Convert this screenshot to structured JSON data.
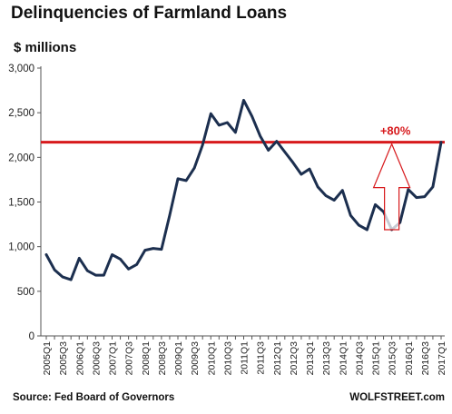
{
  "chart_data": {
    "type": "line",
    "title": "Delinquencies of Farmland Loans",
    "ylabel": "$ millions",
    "ylim": [
      0,
      3000
    ],
    "yticks": [
      "3,000",
      "2,500",
      "2,000",
      "1,500",
      "1,000",
      "500",
      "0"
    ],
    "ytick_values": [
      3000,
      2500,
      2000,
      1500,
      1000,
      500,
      0
    ],
    "categories": [
      "2005Q1",
      "2005Q2",
      "2005Q3",
      "2005Q4",
      "2006Q1",
      "2006Q2",
      "2006Q3",
      "2006Q4",
      "2007Q1",
      "2007Q2",
      "2007Q3",
      "2007Q4",
      "2008Q1",
      "2008Q2",
      "2008Q3",
      "2008Q4",
      "2009Q1",
      "2009Q2",
      "2009Q3",
      "2009Q4",
      "2010Q1",
      "2010Q2",
      "2010Q3",
      "2010Q4",
      "2011Q1",
      "2011Q2",
      "2011Q3",
      "2011Q4",
      "2012Q1",
      "2012Q2",
      "2012Q3",
      "2012Q4",
      "2013Q1",
      "2013Q2",
      "2013Q3",
      "2013Q4",
      "2014Q1",
      "2014Q2",
      "2014Q3",
      "2014Q4",
      "2015Q1",
      "2015Q2",
      "2015Q3",
      "2015Q4",
      "2016Q1",
      "2016Q2",
      "2016Q3",
      "2016Q4",
      "2017Q1"
    ],
    "xtick_labels": [
      "2005Q1",
      "2005Q3",
      "2006Q1",
      "2006Q3",
      "2007Q1",
      "2007Q3",
      "2008Q1",
      "2008Q3",
      "2009Q1",
      "2009Q3",
      "2010Q1",
      "2010Q3",
      "2011Q1",
      "2011Q3",
      "2012Q1",
      "2012Q3",
      "2013Q1",
      "2013Q3",
      "2014Q1",
      "2014Q3",
      "2015Q1",
      "2015Q3",
      "2016Q1",
      "2016Q3",
      "2017Q1"
    ],
    "series": [
      {
        "values": [
          910,
          740,
          660,
          630,
          870,
          730,
          680,
          680,
          910,
          860,
          750,
          800,
          960,
          980,
          970,
          1350,
          1760,
          1740,
          1880,
          2140,
          2490,
          2360,
          2390,
          2280,
          2640,
          2460,
          2240,
          2080,
          2180,
          2060,
          1940,
          1810,
          1870,
          1670,
          1570,
          1520,
          1630,
          1350,
          1240,
          1190,
          1470,
          1390,
          1190,
          1270,
          1640,
          1550,
          1560,
          1670,
          2170
        ],
        "color": "#1c2f4f"
      }
    ],
    "reference_line": {
      "value": 2170,
      "color": "#d7191c"
    },
    "annotation": {
      "text": "+80%",
      "color": "#d7191c",
      "from_index": 42,
      "from_value": 1190,
      "to_value": 2170
    },
    "grid": false,
    "source": "Source: Fed Board of Governors",
    "brand": "WOLFSTREET.com"
  }
}
